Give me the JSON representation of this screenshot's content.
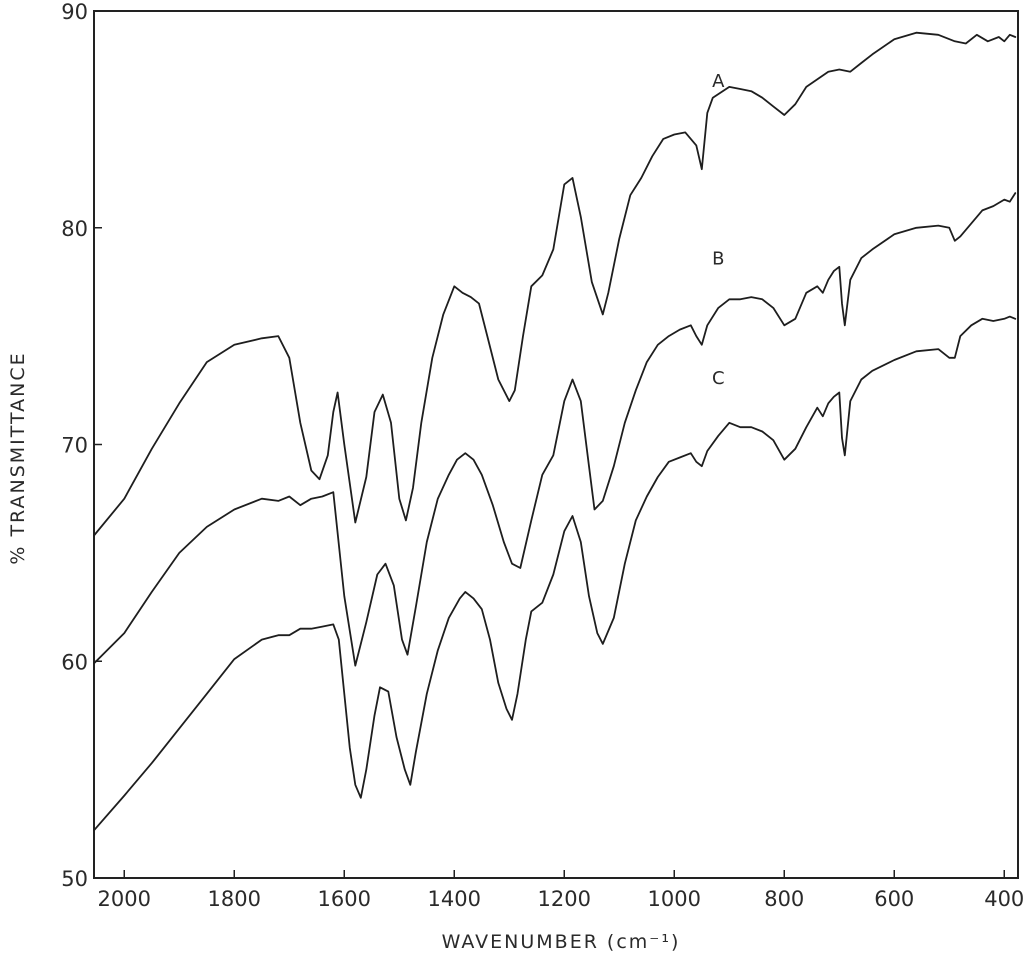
{
  "chart_data": {
    "type": "line",
    "title": "",
    "xlabel": "WAVENUMBER (cm⁻¹)",
    "ylabel": "% TRANSMITTANCE",
    "xlim": [
      2055,
      375
    ],
    "ylim": [
      50,
      90
    ],
    "x_reversed": true,
    "x_ticks": [
      2000,
      1800,
      1600,
      1400,
      1200,
      1000,
      800,
      600,
      400
    ],
    "x_tick_labels": [
      "2000",
      "1800",
      "1600",
      "1400",
      "1200",
      "1000",
      "800",
      "600",
      "400"
    ],
    "y_ticks": [
      50,
      60,
      70,
      80,
      90
    ],
    "y_tick_labels": [
      "50",
      "60",
      "70",
      "80",
      "90"
    ],
    "grid": false,
    "line_color": "#1e1e1e",
    "series": [
      {
        "name": "A",
        "x": [
          2055,
          2000,
          1950,
          1900,
          1850,
          1800,
          1750,
          1720,
          1700,
          1680,
          1660,
          1645,
          1630,
          1620,
          1612,
          1600,
          1580,
          1560,
          1545,
          1530,
          1515,
          1500,
          1488,
          1475,
          1460,
          1440,
          1420,
          1400,
          1385,
          1370,
          1355,
          1340,
          1320,
          1300,
          1290,
          1275,
          1260,
          1240,
          1220,
          1200,
          1185,
          1170,
          1150,
          1130,
          1120,
          1100,
          1080,
          1060,
          1040,
          1020,
          1000,
          980,
          960,
          950,
          940,
          930,
          900,
          880,
          860,
          840,
          820,
          800,
          780,
          760,
          720,
          700,
          680,
          660,
          640,
          600,
          560,
          520,
          490,
          470,
          450,
          430,
          410,
          400,
          390,
          380
        ],
        "y": [
          65.8,
          67.5,
          69.8,
          71.9,
          73.8,
          74.6,
          74.9,
          75.0,
          74.0,
          71.0,
          68.8,
          68.4,
          69.5,
          71.5,
          72.4,
          70.0,
          66.4,
          68.5,
          71.5,
          72.3,
          71.0,
          67.5,
          66.5,
          68.0,
          71.0,
          74.0,
          76.0,
          77.3,
          77.0,
          76.8,
          76.5,
          75.0,
          73.0,
          72.0,
          72.5,
          75.0,
          77.3,
          77.8,
          79.0,
          82.0,
          82.3,
          80.5,
          77.5,
          76.0,
          77.0,
          79.5,
          81.5,
          82.3,
          83.3,
          84.1,
          84.3,
          84.4,
          83.8,
          82.7,
          85.3,
          86.0,
          86.5,
          86.4,
          86.3,
          86.0,
          85.6,
          85.2,
          85.7,
          86.5,
          87.2,
          87.3,
          87.2,
          87.6,
          88.0,
          88.7,
          89.0,
          88.9,
          88.6,
          88.5,
          88.9,
          88.6,
          88.8,
          88.6,
          88.9,
          88.8
        ]
      },
      {
        "name": "B",
        "x": [
          2055,
          2000,
          1950,
          1900,
          1850,
          1800,
          1750,
          1720,
          1700,
          1680,
          1660,
          1640,
          1620,
          1600,
          1580,
          1560,
          1540,
          1525,
          1510,
          1495,
          1485,
          1470,
          1450,
          1430,
          1410,
          1395,
          1380,
          1365,
          1350,
          1330,
          1310,
          1295,
          1280,
          1260,
          1240,
          1220,
          1200,
          1185,
          1170,
          1155,
          1145,
          1130,
          1110,
          1090,
          1070,
          1050,
          1030,
          1010,
          990,
          970,
          960,
          950,
          940,
          920,
          900,
          880,
          860,
          840,
          820,
          800,
          780,
          760,
          740,
          730,
          720,
          710,
          700,
          695,
          690,
          680,
          660,
          640,
          600,
          560,
          520,
          500,
          490,
          480,
          460,
          440,
          420,
          400,
          390,
          380
        ],
        "y": [
          59.9,
          61.3,
          63.2,
          65.0,
          66.2,
          67.0,
          67.5,
          67.4,
          67.6,
          67.2,
          67.5,
          67.6,
          67.8,
          63.0,
          59.8,
          61.8,
          64.0,
          64.5,
          63.5,
          61.0,
          60.3,
          62.5,
          65.5,
          67.5,
          68.6,
          69.3,
          69.6,
          69.3,
          68.6,
          67.2,
          65.5,
          64.5,
          64.3,
          66.5,
          68.6,
          69.5,
          72.0,
          73.0,
          72.0,
          69.0,
          67.0,
          67.4,
          69.0,
          71.0,
          72.5,
          73.8,
          74.6,
          75.0,
          75.3,
          75.5,
          75.0,
          74.6,
          75.5,
          76.3,
          76.7,
          76.7,
          76.8,
          76.7,
          76.3,
          75.5,
          75.8,
          77.0,
          77.3,
          77.0,
          77.6,
          78.0,
          78.2,
          76.5,
          75.5,
          77.6,
          78.6,
          79.0,
          79.7,
          80.0,
          80.1,
          80.0,
          79.4,
          79.6,
          80.2,
          80.8,
          81.0,
          81.3,
          81.2,
          81.6
        ]
      },
      {
        "name": "C",
        "x": [
          2055,
          2000,
          1950,
          1900,
          1850,
          1800,
          1750,
          1720,
          1700,
          1680,
          1660,
          1640,
          1620,
          1610,
          1600,
          1590,
          1580,
          1570,
          1560,
          1545,
          1535,
          1520,
          1505,
          1490,
          1480,
          1470,
          1450,
          1430,
          1410,
          1390,
          1380,
          1365,
          1350,
          1335,
          1320,
          1305,
          1295,
          1285,
          1270,
          1260,
          1240,
          1220,
          1200,
          1185,
          1170,
          1155,
          1140,
          1130,
          1110,
          1090,
          1070,
          1050,
          1030,
          1010,
          990,
          970,
          960,
          950,
          940,
          920,
          900,
          880,
          860,
          840,
          820,
          800,
          780,
          760,
          740,
          730,
          720,
          710,
          700,
          695,
          690,
          680,
          660,
          640,
          600,
          560,
          520,
          500,
          490,
          480,
          460,
          440,
          420,
          400,
          390,
          380
        ],
        "y": [
          52.2,
          53.8,
          55.3,
          56.9,
          58.5,
          60.1,
          61.0,
          61.2,
          61.2,
          61.5,
          61.5,
          61.6,
          61.7,
          61.0,
          58.5,
          56.0,
          54.3,
          53.7,
          55.0,
          57.5,
          58.8,
          58.6,
          56.5,
          55.0,
          54.3,
          55.8,
          58.5,
          60.5,
          62.0,
          62.9,
          63.2,
          62.9,
          62.4,
          61.0,
          59.0,
          57.8,
          57.3,
          58.5,
          61.0,
          62.3,
          62.7,
          64.0,
          66.0,
          66.7,
          65.5,
          63.0,
          61.3,
          60.8,
          62.0,
          64.5,
          66.5,
          67.6,
          68.5,
          69.2,
          69.4,
          69.6,
          69.2,
          69.0,
          69.7,
          70.4,
          71.0,
          70.8,
          70.8,
          70.6,
          70.2,
          69.3,
          69.8,
          70.8,
          71.7,
          71.3,
          71.9,
          72.2,
          72.4,
          70.3,
          69.5,
          72.0,
          73.0,
          73.4,
          73.9,
          74.3,
          74.4,
          74.0,
          74.0,
          75.0,
          75.5,
          75.8,
          75.7,
          75.8,
          75.9,
          75.8
        ]
      }
    ]
  }
}
